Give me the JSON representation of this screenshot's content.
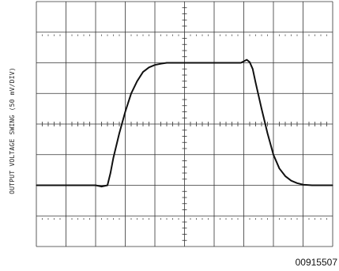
{
  "chart_data": {
    "type": "line",
    "ylabel": "OUTPUT VOLTAGE SWING (50 mV/DIV)",
    "xlabel": "",
    "title": "",
    "figure_id": "00915507",
    "divisions": {
      "x": 10,
      "y": 8
    },
    "xlim": [
      0,
      10
    ],
    "ylim": [
      0,
      8
    ],
    "grid": true,
    "series": [
      {
        "color": "#111111",
        "x": [
          0.0,
          1.0,
          2.0,
          2.2,
          2.4,
          2.5,
          2.6,
          2.8,
          3.0,
          3.2,
          3.4,
          3.6,
          3.8,
          4.0,
          4.2,
          4.4,
          4.6,
          5.0,
          5.5,
          6.0,
          6.5,
          6.9,
          7.0,
          7.1,
          7.2,
          7.3,
          7.4,
          7.6,
          7.8,
          8.0,
          8.2,
          8.4,
          8.6,
          8.8,
          9.0,
          9.3,
          9.6,
          10.0
        ],
        "y": [
          2.0,
          2.0,
          2.0,
          1.96,
          2.0,
          2.4,
          2.9,
          3.7,
          4.4,
          5.0,
          5.4,
          5.7,
          5.85,
          5.93,
          5.97,
          6.0,
          6.0,
          6.0,
          6.0,
          6.0,
          6.0,
          6.0,
          6.05,
          6.1,
          6.02,
          5.8,
          5.35,
          4.5,
          3.7,
          3.0,
          2.55,
          2.3,
          2.15,
          2.07,
          2.02,
          2.0,
          2.0,
          2.0
        ]
      }
    ]
  }
}
